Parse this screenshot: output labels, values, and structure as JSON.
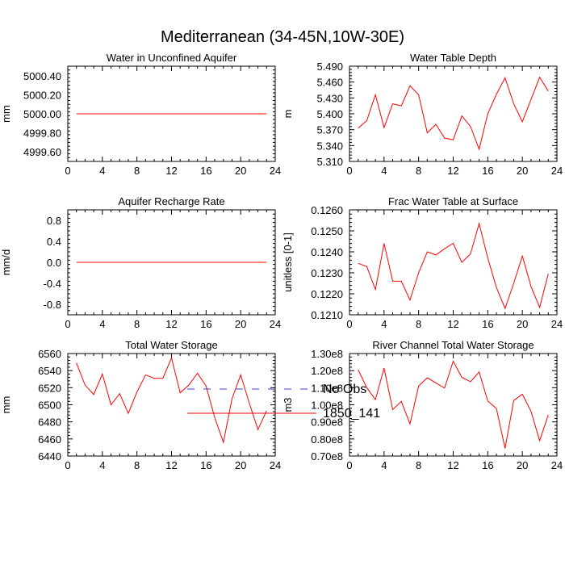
{
  "title": "Mediterranean (34-45N,10W-30E)",
  "colors": {
    "model": "#ff0000",
    "obs": "#3b3bd8",
    "axis": "#000000"
  },
  "legend": {
    "entries": [
      {
        "label": "No Obs",
        "style": "dashed",
        "color": "#3b3bd8"
      },
      {
        "label": "1850_141",
        "style": "solid",
        "color": "#ff0000"
      }
    ]
  },
  "chart_data": [
    {
      "type": "line",
      "title": "Water in Unconfined Aquifer",
      "ylabel": "mm",
      "xlim": [
        0,
        24
      ],
      "xticks": [
        0,
        4,
        8,
        12,
        16,
        20,
        24
      ],
      "xtick_labels": [
        "0",
        "4",
        "8",
        "12",
        "16",
        "20",
        "24"
      ],
      "ylim": [
        4999.5,
        5000.5
      ],
      "yticks": [
        4999.6,
        4999.8,
        5000.0,
        5000.2,
        5000.4
      ],
      "ytick_labels": [
        "4999.60",
        "4999.80",
        "5000.00",
        "5000.20",
        "5000.40"
      ],
      "series": [
        {
          "name": "1850_141",
          "x": [
            1,
            2,
            3,
            4,
            5,
            6,
            7,
            8,
            9,
            10,
            11,
            12,
            13,
            14,
            15,
            16,
            17,
            18,
            19,
            20,
            21,
            22,
            23
          ],
          "values": [
            5000,
            5000,
            5000,
            5000,
            5000,
            5000,
            5000,
            5000,
            5000,
            5000,
            5000,
            5000,
            5000,
            5000,
            5000,
            5000,
            5000,
            5000,
            5000,
            5000,
            5000,
            5000,
            5000
          ]
        }
      ]
    },
    {
      "type": "line",
      "title": "Water Table Depth",
      "ylabel": "m",
      "xlim": [
        0,
        24
      ],
      "xticks": [
        0,
        4,
        8,
        12,
        16,
        20,
        24
      ],
      "xtick_labels": [
        "0",
        "4",
        "8",
        "12",
        "16",
        "20",
        "24"
      ],
      "ylim": [
        5.31,
        5.49
      ],
      "yticks": [
        5.31,
        5.34,
        5.37,
        5.4,
        5.43,
        5.46,
        5.49
      ],
      "ytick_labels": [
        "5.310",
        "5.340",
        "5.370",
        "5.400",
        "5.430",
        "5.460",
        "5.490"
      ],
      "series": [
        {
          "name": "1850_141",
          "x": [
            1,
            2,
            3,
            4,
            5,
            6,
            7,
            8,
            9,
            10,
            11,
            12,
            13,
            14,
            15,
            16,
            17,
            18,
            19,
            20,
            21,
            22,
            23
          ],
          "values": [
            5.373,
            5.387,
            5.436,
            5.374,
            5.419,
            5.415,
            5.453,
            5.436,
            5.364,
            5.38,
            5.354,
            5.351,
            5.396,
            5.376,
            5.333,
            5.4,
            5.437,
            5.468,
            5.419,
            5.385,
            5.427,
            5.469,
            5.443
          ]
        }
      ]
    },
    {
      "type": "line",
      "title": "Aquifer Recharge Rate",
      "ylabel": "mm/d",
      "xlim": [
        0,
        24
      ],
      "xticks": [
        0,
        4,
        8,
        12,
        16,
        20,
        24
      ],
      "xtick_labels": [
        "0",
        "4",
        "8",
        "12",
        "16",
        "20",
        "24"
      ],
      "ylim": [
        -1.0,
        1.0
      ],
      "yticks": [
        -0.8,
        -0.4,
        0.0,
        0.4,
        0.8
      ],
      "ytick_labels": [
        "-0.8",
        "-0.4",
        "0.0",
        "0.4",
        "0.8"
      ],
      "series": [
        {
          "name": "1850_141",
          "x": [
            1,
            2,
            3,
            4,
            5,
            6,
            7,
            8,
            9,
            10,
            11,
            12,
            13,
            14,
            15,
            16,
            17,
            18,
            19,
            20,
            21,
            22,
            23
          ],
          "values": [
            0,
            0,
            0,
            0,
            0,
            0,
            0,
            0,
            0,
            0,
            0,
            0,
            0,
            0,
            0,
            0,
            0,
            0,
            0,
            0,
            0,
            0,
            0
          ]
        }
      ]
    },
    {
      "type": "line",
      "title": "Frac Water Table at Surface",
      "ylabel": "unitless [0-1]",
      "xlim": [
        0,
        24
      ],
      "xticks": [
        0,
        4,
        8,
        12,
        16,
        20,
        24
      ],
      "xtick_labels": [
        "0",
        "4",
        "8",
        "12",
        "16",
        "20",
        "24"
      ],
      "ylim": [
        0.121,
        0.126
      ],
      "yticks": [
        0.121,
        0.122,
        0.123,
        0.124,
        0.125,
        0.126
      ],
      "ytick_labels": [
        "0.1210",
        "0.1220",
        "0.1230",
        "0.1240",
        "0.1250",
        "0.1260"
      ],
      "series": [
        {
          "name": "1850_141",
          "x": [
            1,
            2,
            3,
            4,
            5,
            6,
            7,
            8,
            9,
            10,
            11,
            12,
            13,
            14,
            15,
            16,
            17,
            18,
            19,
            20,
            21,
            22,
            23
          ],
          "values": [
            0.12345,
            0.1233,
            0.1222,
            0.1244,
            0.1226,
            0.1226,
            0.1217,
            0.123,
            0.124,
            0.12385,
            0.12415,
            0.1244,
            0.1235,
            0.1239,
            0.12535,
            0.1237,
            0.1223,
            0.1213,
            0.1225,
            0.1238,
            0.12235,
            0.12135,
            0.12295
          ]
        }
      ]
    },
    {
      "type": "line",
      "title": "Total Water Storage",
      "ylabel": "mm",
      "xlim": [
        0,
        24
      ],
      "xticks": [
        0,
        4,
        8,
        12,
        16,
        20,
        24
      ],
      "xtick_labels": [
        "0",
        "4",
        "8",
        "12",
        "16",
        "20",
        "24"
      ],
      "ylim": [
        6440,
        6560
      ],
      "yticks": [
        6440,
        6460,
        6480,
        6500,
        6520,
        6540,
        6560
      ],
      "ytick_labels": [
        "6440",
        "6460",
        "6480",
        "6500",
        "6520",
        "6540",
        "6560"
      ],
      "series": [
        {
          "name": "1850_141",
          "x": [
            1,
            2,
            3,
            4,
            5,
            6,
            7,
            8,
            9,
            10,
            11,
            12,
            13,
            14,
            15,
            16,
            17,
            18,
            19,
            20,
            21,
            22,
            23
          ],
          "values": [
            6549,
            6523,
            6512,
            6536,
            6500,
            6513,
            6490,
            6515,
            6535,
            6531,
            6531,
            6555,
            6514,
            6523,
            6537,
            6522,
            6485,
            6456,
            6507,
            6535,
            6502,
            6471,
            6493
          ]
        }
      ]
    },
    {
      "type": "line",
      "title": "River Channel Total Water Storage",
      "ylabel": "m3",
      "xlim": [
        0,
        24
      ],
      "xticks": [
        0,
        4,
        8,
        12,
        16,
        20,
        24
      ],
      "xtick_labels": [
        "0",
        "4",
        "8",
        "12",
        "16",
        "20",
        "24"
      ],
      "ylim": [
        70000000.0,
        130000000.0
      ],
      "yticks": [
        70000000.0,
        80000000.0,
        90000000.0,
        100000000.0,
        110000000.0,
        120000000.0,
        130000000.0
      ],
      "ytick_labels": [
        "0.70e8",
        "0.80e8",
        "0.90e8",
        "1.00e8",
        "1.10e8",
        "1.20e8",
        "1.30e8"
      ],
      "series": [
        {
          "name": "1850_141",
          "x": [
            1,
            2,
            3,
            4,
            5,
            6,
            7,
            8,
            9,
            10,
            11,
            12,
            13,
            14,
            15,
            16,
            17,
            18,
            19,
            20,
            21,
            22,
            23
          ],
          "values": [
            120500000.0,
            110000000.0,
            103000000.0,
            121500000.0,
            97200000.0,
            102000000.0,
            88800000.0,
            111000000.0,
            115800000.0,
            112800000.0,
            109800000.0,
            125500000.0,
            116000000.0,
            113500000.0,
            119200000.0,
            102200000.0,
            97800000.0,
            74500000.0,
            102500000.0,
            106200000.0,
            96200000.0,
            79000000.0,
            94000000.0
          ]
        }
      ]
    }
  ]
}
